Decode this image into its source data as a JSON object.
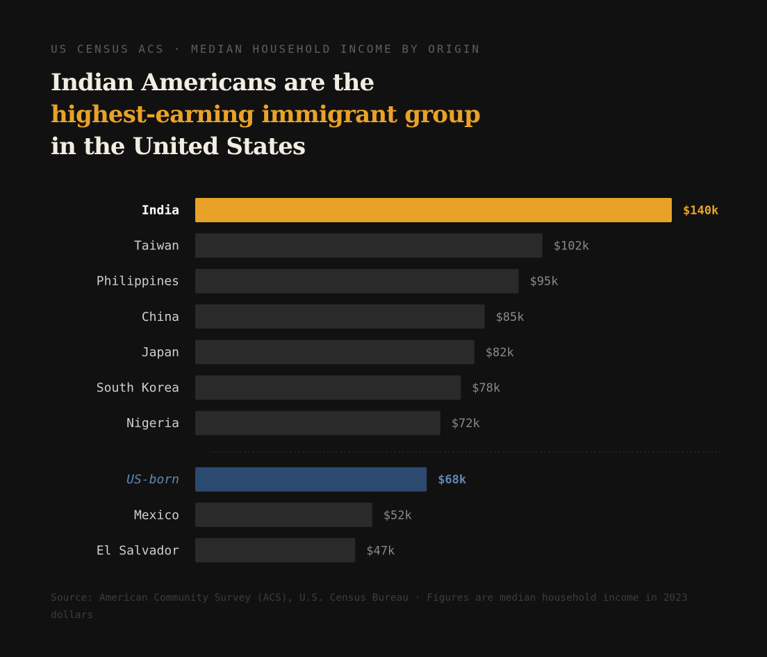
{
  "kicker": "US CENSUS ACS · MEDIAN HOUSEHOLD INCOME BY ORIGIN",
  "headline": {
    "line1": "Indian Americans are the",
    "line2": "highest-earning immigrant group",
    "line3": "in the United States"
  },
  "colors": {
    "background": "#111111",
    "highlight": "#e9a228",
    "baseline": "#2c4a70",
    "baseline_text": "#5f87b5",
    "bar": "#2a2a2a",
    "label": "#cfcfcf",
    "value": "#8a8a8a"
  },
  "chart_data": {
    "type": "bar",
    "orientation": "horizontal",
    "title": "Median household income by origin",
    "xlabel": "",
    "ylabel": "",
    "unit": "USD thousands (2023 dollars)",
    "xlim": [
      0,
      140
    ],
    "categories": [
      "India",
      "Taiwan",
      "Philippines",
      "China",
      "Japan",
      "South Korea",
      "Nigeria",
      "US-born",
      "Mexico",
      "El Salvador"
    ],
    "values": [
      140,
      102,
      95,
      85,
      82,
      78,
      72,
      68,
      52,
      47
    ],
    "value_labels": [
      "$140k",
      "$102k",
      "$95k",
      "$85k",
      "$82k",
      "$78k",
      "$72k",
      "$68k",
      "$52k",
      "$47k"
    ],
    "styles": [
      "highlight",
      "default",
      "default",
      "default",
      "default",
      "default",
      "default",
      "baseline",
      "default",
      "default"
    ],
    "separator_before": "US-born"
  },
  "source": "Source: American Community Survey (ACS), U.S. Census Bureau · Figures are median household income in 2023 dollars"
}
